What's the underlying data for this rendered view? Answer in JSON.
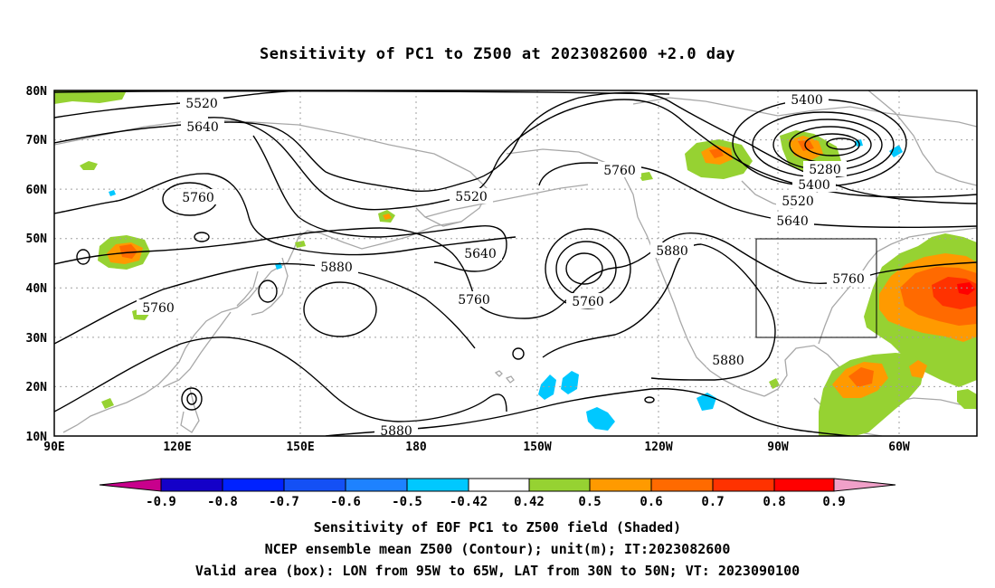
{
  "title": "Sensitivity of PC1 to Z500 at 2023082600 +2.0 day",
  "map": {
    "lat_labels": [
      "80N",
      "70N",
      "60N",
      "50N",
      "40N",
      "30N",
      "20N",
      "10N"
    ],
    "lon_labels": [
      "90E",
      "120E",
      "150E",
      "180",
      "150W",
      "120W",
      "90W",
      "60W"
    ],
    "contour_labels": [
      "5520",
      "5640",
      "5760",
      "5520",
      "5640",
      "5760",
      "5880",
      "5760",
      "5880",
      "5760",
      "5400",
      "5280",
      "5400",
      "5520",
      "5640",
      "5760",
      "5880",
      "5880"
    ],
    "box_label": "Valid area (box)",
    "box_extent": {
      "lon_west": -95,
      "lon_east": -65,
      "lat_south": 30,
      "lat_north": 50
    }
  },
  "colorbar": {
    "labels": [
      "-0.9",
      "-0.8",
      "-0.7",
      "-0.6",
      "-0.5",
      "-0.42",
      "0.42",
      "0.5",
      "0.6",
      "0.7",
      "0.8",
      "0.9"
    ],
    "colors": [
      "#c8008c",
      "#1400c8",
      "#0022ff",
      "#1450f5",
      "#1e82ff",
      "#00c8ff",
      "#ffffff",
      "#96d232",
      "#ff9a00",
      "#ff6a00",
      "#ff3200",
      "#ff0000",
      "#f0a0c8"
    ]
  },
  "captions": [
    "Sensitivity of EOF PC1 to Z500 field (Shaded)",
    "NCEP ensemble mean Z500 (Contour); unit(m); IT:2023082600",
    "Valid area (box): LON from 95W to 65W, LAT from 30N to 50N; VT: 2023090100"
  ]
}
